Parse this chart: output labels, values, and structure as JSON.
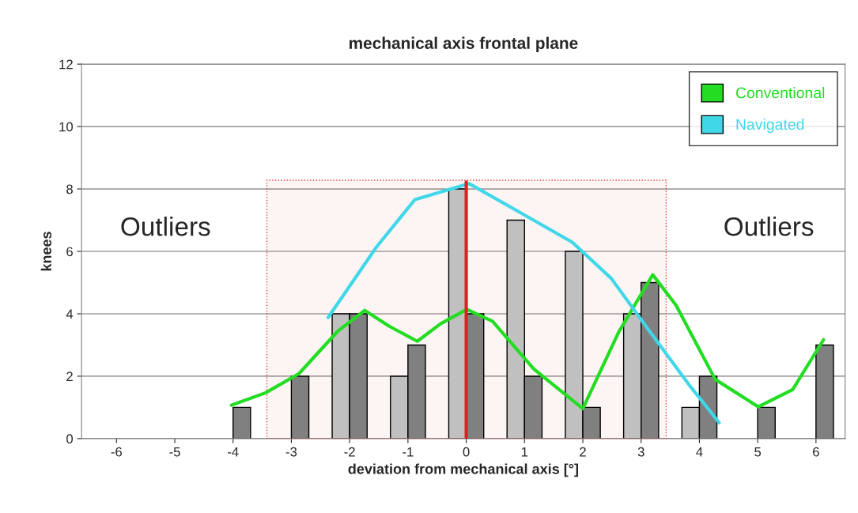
{
  "chart_data": {
    "type": "bar",
    "title": "mechanical axis frontal plane",
    "xlabel": "deviation from mechanical axis [°]",
    "ylabel": "knees",
    "x": [
      -4,
      -3,
      -2,
      -1,
      0,
      1,
      2,
      3,
      4,
      5,
      6
    ],
    "series": [
      {
        "color": "#c0c0c0",
        "values": [
          null,
          null,
          4,
          2,
          8,
          7,
          6,
          4,
          1,
          null,
          null
        ]
      },
      {
        "color": "#808080",
        "values": [
          1,
          2,
          4,
          3,
          4,
          2,
          1,
          5,
          2,
          1,
          3
        ]
      },
      {
        "type": "line",
        "name": "Conventional",
        "color": "#22dd22",
        "x": [
          -4.03,
          -3.44,
          -2.87,
          -2.21,
          -1.74,
          -1.32,
          -0.84,
          -0.44,
          0.01,
          0.45,
          1.16,
          2.0,
          2.62,
          3.2,
          3.6,
          4.27,
          5.01,
          5.6,
          6.13
        ],
        "values": [
          1.07,
          1.47,
          2.08,
          3.43,
          4.11,
          3.6,
          3.12,
          3.68,
          4.14,
          3.76,
          2.23,
          0.96,
          3.43,
          5.25,
          4.27,
          1.9,
          1.02,
          1.57,
          3.17
        ]
      },
      {
        "type": "line",
        "name": "Navigated",
        "color": "#40d8e8",
        "x": [
          -2.37,
          -1.54,
          -0.88,
          0.05,
          0.94,
          1.82,
          2.49,
          3.15,
          3.82,
          4.34
        ],
        "values": [
          3.88,
          6.14,
          7.66,
          8.17,
          7.23,
          6.29,
          5.13,
          3.43,
          1.73,
          0.51
        ]
      }
    ],
    "ref_lines": [
      {
        "axis": "x",
        "value": 0,
        "color": "#e02020"
      }
    ],
    "bands": [
      {
        "axis": "x",
        "from": -3.42,
        "to": 3.43,
        "color": "#e04040"
      }
    ],
    "annotations": [
      "Outliers",
      "Outliers"
    ],
    "xlim": [
      -6.6,
      6.5
    ],
    "xticks": [
      -6,
      -5,
      -4,
      -3,
      -2,
      -1,
      0,
      1,
      2,
      3,
      4,
      5,
      6
    ],
    "ylim": [
      0,
      12
    ],
    "yticks": [
      0,
      2,
      4,
      6,
      8,
      10,
      12
    ],
    "grid": "y",
    "legend": "top right"
  }
}
